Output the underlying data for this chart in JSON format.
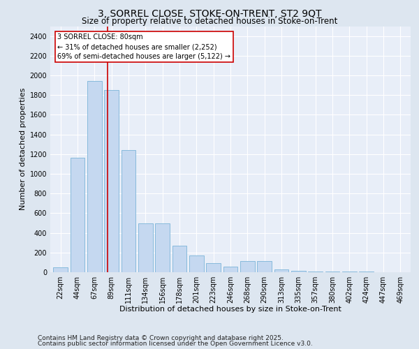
{
  "title1": "3, SORREL CLOSE, STOKE-ON-TRENT, ST2 9QT",
  "title2": "Size of property relative to detached houses in Stoke-on-Trent",
  "xlabel": "Distribution of detached houses by size in Stoke-on-Trent",
  "ylabel": "Number of detached properties",
  "categories": [
    "22sqm",
    "44sqm",
    "67sqm",
    "89sqm",
    "111sqm",
    "134sqm",
    "156sqm",
    "178sqm",
    "201sqm",
    "223sqm",
    "246sqm",
    "268sqm",
    "290sqm",
    "313sqm",
    "335sqm",
    "357sqm",
    "380sqm",
    "402sqm",
    "424sqm",
    "447sqm",
    "469sqm"
  ],
  "values": [
    50,
    1160,
    1940,
    1850,
    1240,
    500,
    500,
    270,
    170,
    90,
    60,
    110,
    110,
    30,
    15,
    10,
    5,
    5,
    5,
    3,
    2
  ],
  "bar_color": "#c5d8f0",
  "bar_edge_color": "#7ab4d8",
  "vline_x": 2.78,
  "vline_color": "#cc0000",
  "annotation_text": "3 SORREL CLOSE: 80sqm\n← 31% of detached houses are smaller (2,252)\n69% of semi-detached houses are larger (5,122) →",
  "annotation_box_color": "#ffffff",
  "annotation_box_edge": "#cc0000",
  "ylim": [
    0,
    2500
  ],
  "yticks": [
    0,
    200,
    400,
    600,
    800,
    1000,
    1200,
    1400,
    1600,
    1800,
    2000,
    2200,
    2400
  ],
  "footer1": "Contains HM Land Registry data © Crown copyright and database right 2025.",
  "footer2": "Contains public sector information licensed under the Open Government Licence v3.0.",
  "bg_color": "#dde6f0",
  "plot_bg_color": "#e8eef8",
  "title1_fontsize": 10,
  "title2_fontsize": 8.5,
  "xlabel_fontsize": 8,
  "ylabel_fontsize": 8,
  "tick_fontsize": 7,
  "footer_fontsize": 6.5,
  "annot_fontsize": 7
}
